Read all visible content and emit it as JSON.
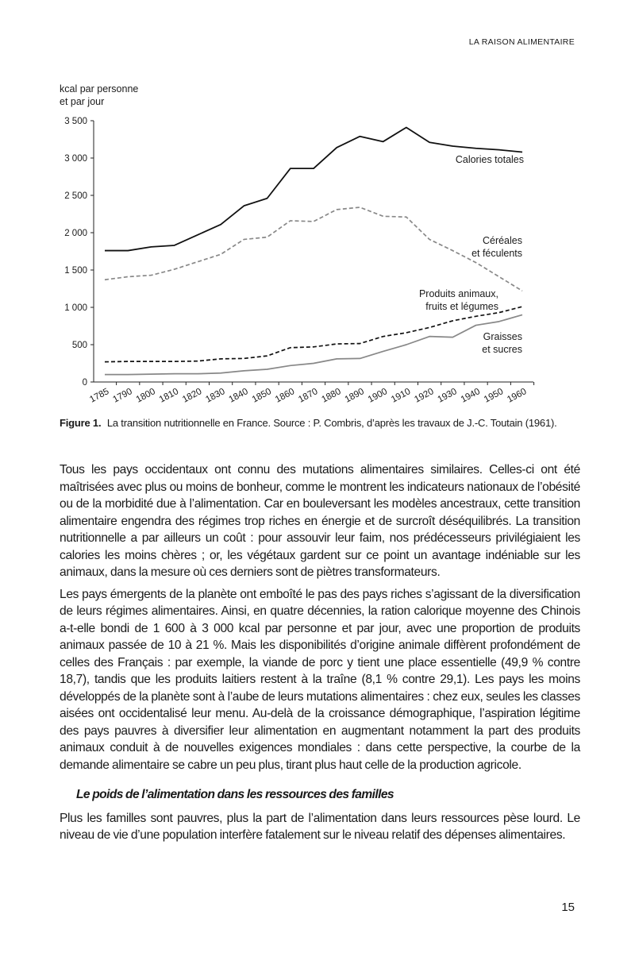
{
  "running_head": "LA RAISON ALIMENTAIRE",
  "chart_data": {
    "type": "line",
    "ylabel_lines": [
      "kcal par personne",
      "et par jour"
    ],
    "categories": [
      "1785",
      "1790",
      "1800",
      "1810",
      "1820",
      "1830",
      "1840",
      "1850",
      "1860",
      "1870",
      "1880",
      "1890",
      "1900",
      "1910",
      "1920",
      "1930",
      "1940",
      "1950",
      "1960"
    ],
    "ylim": [
      0,
      3500
    ],
    "yticks": [
      0,
      500,
      1000,
      1500,
      2000,
      2500,
      3000,
      3500
    ],
    "ytick_labels": [
      "0",
      "500",
      "1 000",
      "1 500",
      "2 000",
      "2 500",
      "3 000",
      "3 500"
    ],
    "grid": false,
    "series": [
      {
        "name": "Calories totales",
        "label_lines": [
          "Calories totales"
        ],
        "style": "solid",
        "color": "#111111",
        "values": [
          1760,
          1760,
          1810,
          1830,
          1970,
          2110,
          2360,
          2460,
          2860,
          2860,
          3140,
          3290,
          3220,
          3410,
          3210,
          3160,
          3130,
          3110,
          3080
        ]
      },
      {
        "name": "Céréales et féculents",
        "label_lines": [
          "Céréales",
          "et féculents"
        ],
        "style": "dashed",
        "color": "#888888",
        "values": [
          1370,
          1410,
          1430,
          1510,
          1610,
          1710,
          1910,
          1940,
          2160,
          2150,
          2310,
          2340,
          2220,
          2210,
          1910,
          1760,
          1600,
          1410,
          1220
        ]
      },
      {
        "name": "Produits animaux, fruits et légumes",
        "label_lines": [
          "Produits animaux,",
          "fruits et légumes"
        ],
        "style": "dashed",
        "color": "#111111",
        "values": [
          270,
          275,
          275,
          275,
          280,
          310,
          315,
          350,
          460,
          470,
          510,
          515,
          610,
          660,
          730,
          820,
          880,
          930,
          1010
        ]
      },
      {
        "name": "Graisses et sucres",
        "label_lines": [
          "Graisses",
          "et sucres"
        ],
        "style": "solid",
        "color": "#888888",
        "values": [
          100,
          100,
          105,
          110,
          110,
          120,
          150,
          170,
          220,
          250,
          310,
          315,
          410,
          500,
          610,
          600,
          760,
          810,
          900
        ]
      }
    ]
  },
  "caption": {
    "label": "Figure 1.",
    "text": "La transition nutritionnelle en France. Source : P. Combris, d’après les travaux de J.-C. Toutain (1961)."
  },
  "paragraphs": [
    "Tous les pays occidentaux ont connu des mutations alimentaires similaires. Celles-ci ont été maîtrisées avec plus ou moins de bonheur, comme le montrent les indicateurs nationaux de l’obésité ou de la morbidité due à l’alimentation. Car en bouleversant les modèles ancestraux, cette transition alimentaire engendra des régimes trop riches en énergie et de surcroît déséquilibrés. La transition nutritionnelle a par ailleurs un coût : pour assouvir leur faim, nos prédécesseurs privilégiaient les calories les moins chères ; or, les végétaux gardent sur ce point un avantage indéniable sur les animaux, dans la mesure où ces derniers sont de piètres transformateurs.",
    "Les pays émergents de la planète ont emboîté le pas des pays riches s’agissant de la diversification de leurs régimes alimentaires. Ainsi, en quatre décennies, la ration calorique moyenne des Chinois a-t-elle bondi de 1 600 à 3 000 kcal par personne et par jour, avec une proportion de produits animaux passée de 10 à 21 %. Mais les disponibilités d’origine animale diffèrent profondément de celles des Français : par exemple, la viande de porc y tient une place essentielle (49,9 % contre 18,7), tandis que les produits laitiers restent à la traîne (8,1 % contre 29,1). Les pays les moins développés de la planète sont à l’aube de leurs mutations alimentaires : chez eux, seules les classes aisées ont occidentalisé leur menu. Au-delà de la croissance démographique, l’aspiration légitime des pays pauvres à diversifier leur alimentation en augmentant notamment la part des produits animaux conduit à de nouvelles exigences mondiales : dans cette perspective, la courbe de la demande alimentaire se cabre un peu plus, tirant plus haut celle de la production agricole."
  ],
  "section_heading": "Le poids de l’alimentation dans les ressources des familles",
  "paragraph_after_heading": "Plus les familles sont pauvres, plus la part de l’alimentation dans leurs ressources pèse lourd. Le niveau de vie d’une population interfère fatalement sur le niveau relatif des dépenses alimentaires.",
  "page_number": "15"
}
